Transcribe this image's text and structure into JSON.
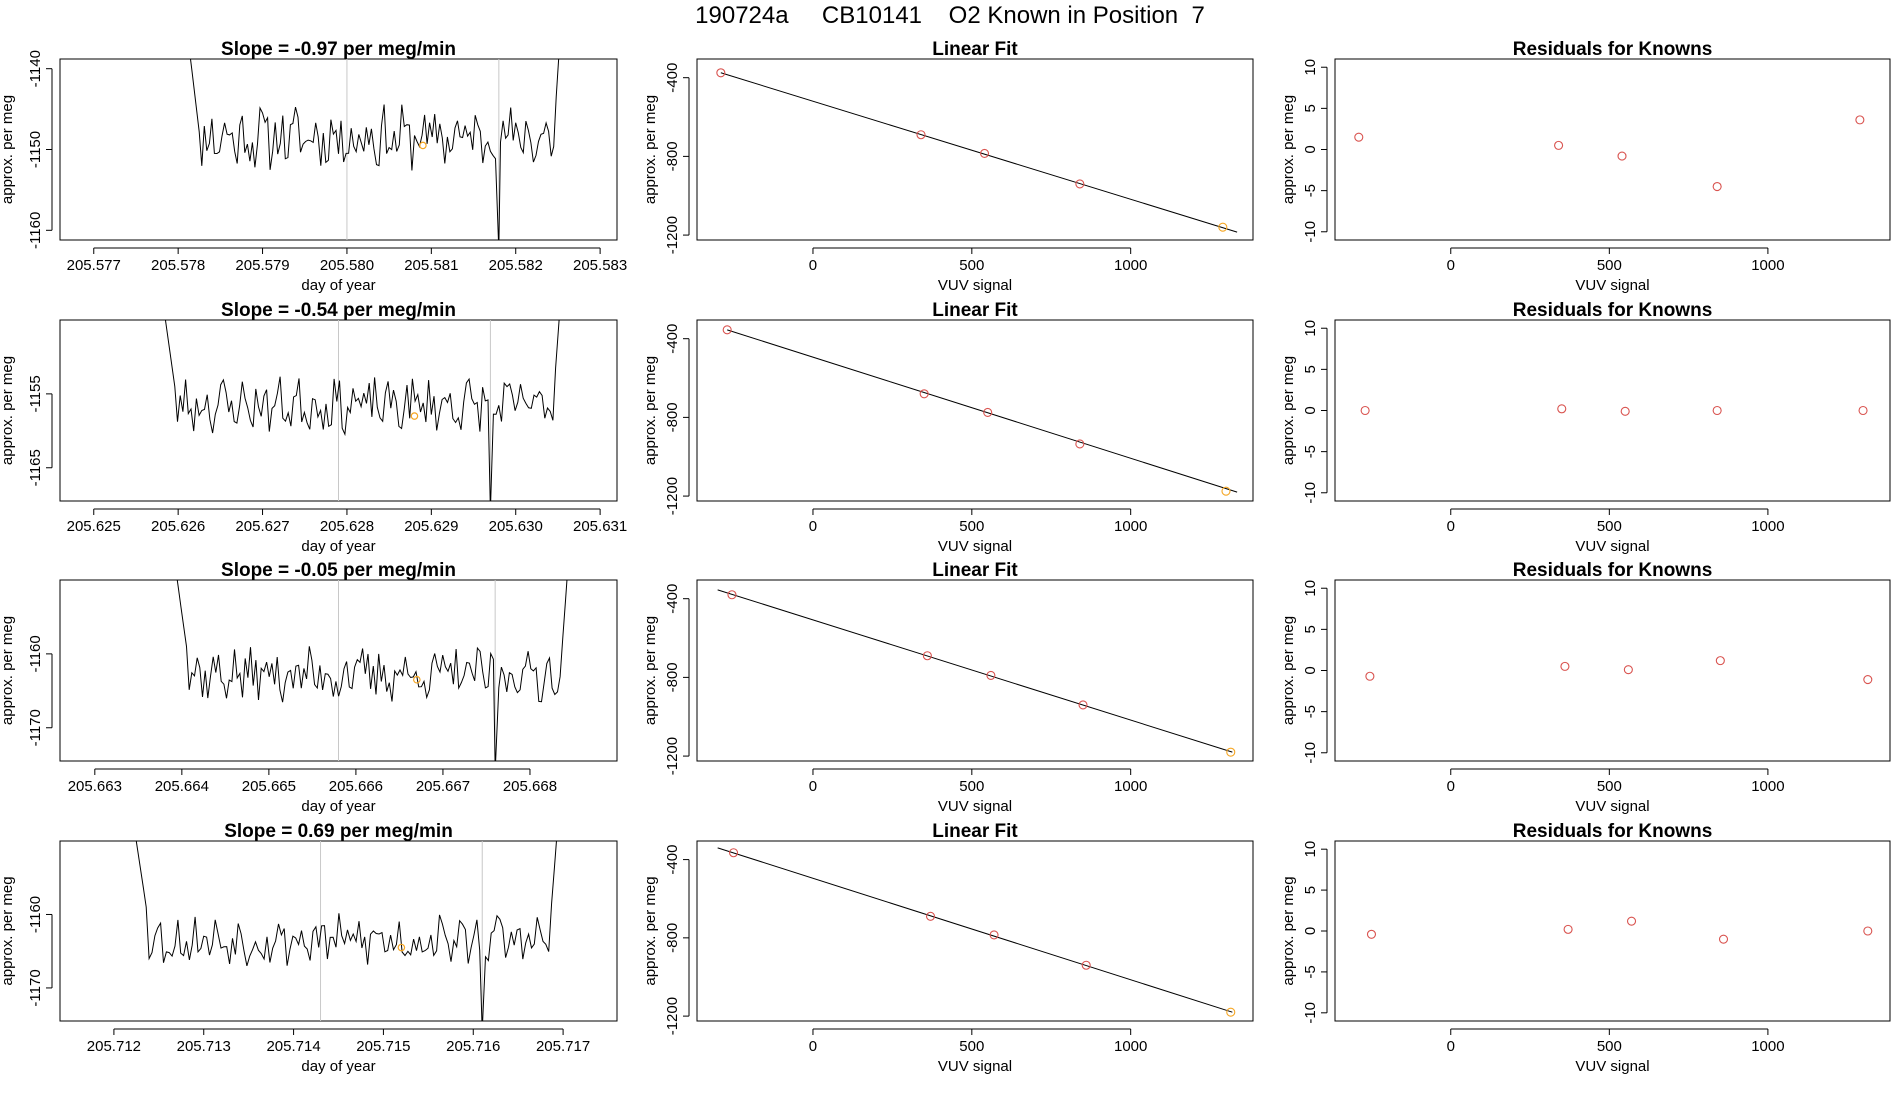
{
  "figure_title": "190724a     CB10141    O2 Known in Position  7",
  "colors": {
    "trace": "#000000",
    "marker_orange": "#f5a623",
    "fit_line": "#000000",
    "residual_point": "#d9534f",
    "vline": "#c8c8c8"
  },
  "chart_data": [
    {
      "type": "line",
      "panel": "row1-timeseries",
      "title": "Slope =  -0.97  per meg/min",
      "xlabel": "day of year",
      "ylabel": "approx. per meg",
      "xlim": [
        205.5766,
        205.5832
      ],
      "ylim": [
        -1161.2,
        -1138.8
      ],
      "xticks": [
        "205.577",
        "205.578",
        "205.579",
        "205.580",
        "205.581",
        "205.582",
        "205.583"
      ],
      "yticks": [
        "-1140",
        "-1150",
        "-1160"
      ],
      "series_start_x": 205.5781,
      "series_end_x": 205.5826,
      "vlines_x": [
        205.58,
        205.5818
      ],
      "orange_marker": [
        205.5809,
        -1149.5
      ],
      "y_baseline": -1148.5,
      "y_noise": 3.2,
      "seed": 11
    },
    {
      "type": "scatter",
      "panel": "row1-linearfit",
      "title": "Linear Fit",
      "xlabel": "VUV signal",
      "ylabel": "approx. per meg",
      "xlim": [
        -365,
        1385
      ],
      "ylim": [
        -1225,
        -305
      ],
      "xticks": [
        "0",
        "500",
        "1000"
      ],
      "yticks": [
        "-400",
        "-800",
        "-1200"
      ],
      "points": [
        [
          -290,
          -375
        ],
        [
          340,
          -690
        ],
        [
          540,
          -785
        ],
        [
          840,
          -940
        ],
        [
          1290,
          -1160
        ]
      ],
      "fit_line": [
        [
          -290,
          -375
        ],
        [
          1335,
          -1185
        ]
      ],
      "highlight_index": 4
    },
    {
      "type": "scatter",
      "panel": "row1-residuals",
      "title": "Residuals for Knowns",
      "xlabel": "VUV signal",
      "ylabel": "approx. per meg",
      "xlim": [
        -365,
        1385
      ],
      "ylim": [
        -11,
        11
      ],
      "xticks": [
        "0",
        "500",
        "1000"
      ],
      "yticks": [
        "10",
        "5",
        "0",
        "-5",
        "-10"
      ],
      "points": [
        [
          -290,
          1.5
        ],
        [
          340,
          0.5
        ],
        [
          540,
          -0.8
        ],
        [
          840,
          -4.5
        ],
        [
          1290,
          3.6
        ]
      ]
    },
    {
      "type": "line",
      "panel": "row2-timeseries",
      "title": "Slope =  -0.54  per meg/min",
      "xlabel": "day of year",
      "ylabel": "approx. per meg",
      "xlim": [
        205.6246,
        205.6312
      ],
      "ylim": [
        -1169.5,
        -1145.0
      ],
      "xticks": [
        "205.625",
        "205.626",
        "205.627",
        "205.628",
        "205.629",
        "205.630",
        "205.631"
      ],
      "yticks": [
        "-1155",
        "-1165"
      ],
      "series_start_x": 205.6258,
      "series_end_x": 205.6306,
      "vlines_x": [
        205.6279,
        205.6297
      ],
      "orange_marker": [
        205.6288,
        -1158.0
      ],
      "y_baseline": -1156.5,
      "y_noise": 3.0,
      "seed": 23
    },
    {
      "type": "scatter",
      "panel": "row2-linearfit",
      "title": "Linear Fit",
      "xlabel": "VUV signal",
      "ylabel": "approx. per meg",
      "xlim": [
        -365,
        1385
      ],
      "ylim": [
        -1225,
        -305
      ],
      "xticks": [
        "0",
        "500",
        "1000"
      ],
      "yticks": [
        "-400",
        "-800",
        "-1200"
      ],
      "points": [
        [
          -270,
          -355
        ],
        [
          350,
          -680
        ],
        [
          550,
          -775
        ],
        [
          840,
          -935
        ],
        [
          1300,
          -1175
        ]
      ],
      "fit_line": [
        [
          -270,
          -355
        ],
        [
          1335,
          -1180
        ]
      ],
      "highlight_index": 4
    },
    {
      "type": "scatter",
      "panel": "row2-residuals",
      "title": "Residuals for Knowns",
      "xlabel": "VUV signal",
      "ylabel": "approx. per meg",
      "xlim": [
        -365,
        1385
      ],
      "ylim": [
        -11,
        11
      ],
      "xticks": [
        "0",
        "500",
        "1000"
      ],
      "yticks": [
        "10",
        "5",
        "0",
        "-5",
        "-10"
      ],
      "points": [
        [
          -270,
          0.0
        ],
        [
          350,
          0.2
        ],
        [
          550,
          -0.1
        ],
        [
          840,
          0.0
        ],
        [
          1300,
          0.0
        ]
      ]
    },
    {
      "type": "line",
      "panel": "row3-timeseries",
      "title": "Slope =  -0.05  per meg/min",
      "xlabel": "day of year",
      "ylabel": "approx. per meg",
      "xlim": [
        205.6626,
        205.669
      ],
      "ylim": [
        -1174.5,
        -1150.0
      ],
      "xticks": [
        "205.663",
        "205.664",
        "205.665",
        "205.666",
        "205.667",
        "205.668"
      ],
      "yticks": [
        "-1160",
        "-1170"
      ],
      "series_start_x": 205.6639,
      "series_end_x": 205.6685,
      "vlines_x": [
        205.6658,
        205.6676
      ],
      "orange_marker": [
        205.6667,
        -1163.5
      ],
      "y_baseline": -1162.8,
      "y_noise": 3.0,
      "seed": 37
    },
    {
      "type": "scatter",
      "panel": "row3-linearfit",
      "title": "Linear Fit",
      "xlabel": "VUV signal",
      "ylabel": "approx. per meg",
      "xlim": [
        -365,
        1385
      ],
      "ylim": [
        -1225,
        -305
      ],
      "xticks": [
        "0",
        "500",
        "1000"
      ],
      "yticks": [
        "-400",
        "-800",
        "-1200"
      ],
      "points": [
        [
          -255,
          -380
        ],
        [
          360,
          -690
        ],
        [
          560,
          -790
        ],
        [
          850,
          -940
        ],
        [
          1315,
          -1180
        ]
      ],
      "fit_line": [
        [
          -300,
          -355
        ],
        [
          1320,
          -1180
        ]
      ],
      "highlight_index": 4
    },
    {
      "type": "scatter",
      "panel": "row3-residuals",
      "title": "Residuals for Knowns",
      "xlabel": "VUV signal",
      "ylabel": "approx. per meg",
      "xlim": [
        -365,
        1385
      ],
      "ylim": [
        -11,
        11
      ],
      "xticks": [
        "0",
        "500",
        "1000"
      ],
      "yticks": [
        "10",
        "5",
        "0",
        "-5",
        "-10"
      ],
      "points": [
        [
          -255,
          -0.7
        ],
        [
          360,
          0.5
        ],
        [
          560,
          0.1
        ],
        [
          850,
          1.2
        ],
        [
          1315,
          -1.1
        ]
      ]
    },
    {
      "type": "line",
      "panel": "row4-timeseries",
      "title": "Slope =  0.69  per meg/min",
      "xlabel": "day of year",
      "ylabel": "approx. per meg",
      "xlim": [
        205.7114,
        205.7176
      ],
      "ylim": [
        -1174.5,
        -1150.0
      ],
      "xticks": [
        "205.712",
        "205.713",
        "205.714",
        "205.715",
        "205.716",
        "205.717"
      ],
      "yticks": [
        "-1160",
        "-1170"
      ],
      "series_start_x": 205.7122,
      "series_end_x": 205.717,
      "vlines_x": [
        205.7143,
        205.7161
      ],
      "orange_marker": [
        205.7152,
        -1164.5
      ],
      "y_baseline": -1163.5,
      "y_noise": 2.8,
      "seed": 53
    },
    {
      "type": "scatter",
      "panel": "row4-linearfit",
      "title": "Linear Fit",
      "xlabel": "VUV signal",
      "ylabel": "approx. per meg",
      "xlim": [
        -365,
        1385
      ],
      "ylim": [
        -1225,
        -305
      ],
      "xticks": [
        "0",
        "500",
        "1000"
      ],
      "yticks": [
        "-400",
        "-800",
        "-1200"
      ],
      "points": [
        [
          -250,
          -365
        ],
        [
          370,
          -690
        ],
        [
          570,
          -785
        ],
        [
          860,
          -940
        ],
        [
          1315,
          -1180
        ]
      ],
      "fit_line": [
        [
          -300,
          -340
        ],
        [
          1320,
          -1180
        ]
      ],
      "highlight_index": 4
    },
    {
      "type": "scatter",
      "panel": "row4-residuals",
      "title": "Residuals for Knowns",
      "xlabel": "VUV signal",
      "ylabel": "approx. per meg",
      "xlim": [
        -365,
        1385
      ],
      "ylim": [
        -11,
        11
      ],
      "xticks": [
        "0",
        "500",
        "1000"
      ],
      "yticks": [
        "10",
        "5",
        "0",
        "-5",
        "-10"
      ],
      "points": [
        [
          -250,
          -0.4
        ],
        [
          370,
          0.2
        ],
        [
          570,
          1.2
        ],
        [
          860,
          -1.0
        ],
        [
          1315,
          0.0
        ]
      ]
    }
  ]
}
